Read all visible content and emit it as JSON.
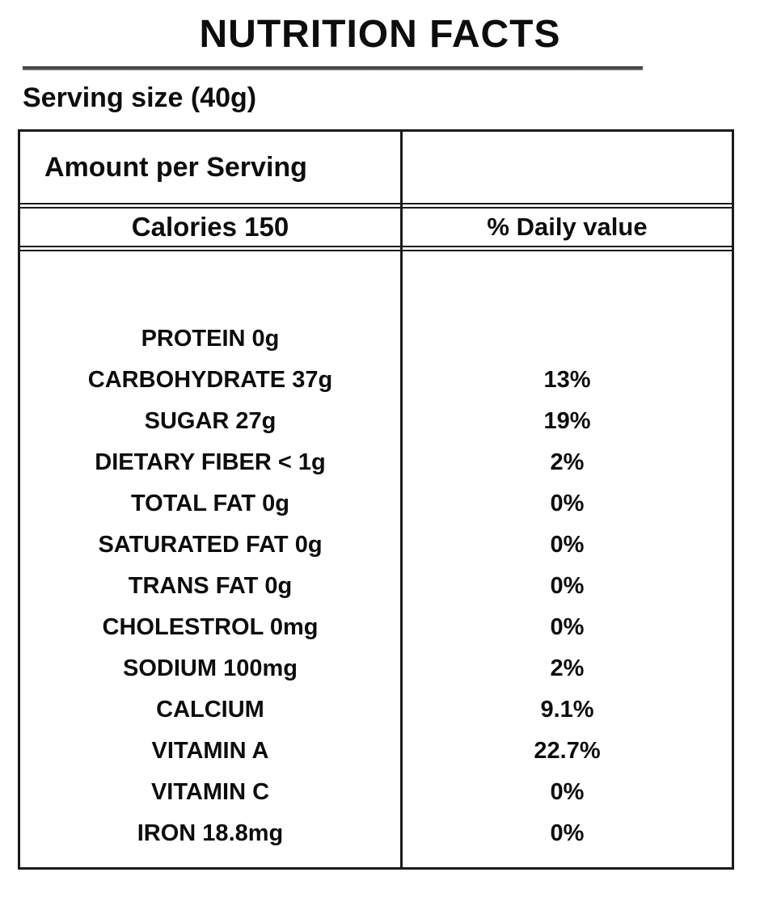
{
  "page": {
    "title": "NUTRITION FACTS",
    "serving_size": "Serving size (40g)"
  },
  "table": {
    "amount_header": "Amount per Serving",
    "calories": "Calories 150",
    "daily_value_header": "% Daily value",
    "rows": [
      {
        "label": "PROTEIN 0g",
        "value": ""
      },
      {
        "label": "CARBOHYDRATE 37g",
        "value": "13%"
      },
      {
        "label": "SUGAR 27g",
        "value": "19%"
      },
      {
        "label": "DIETARY FIBER < 1g",
        "value": "2%"
      },
      {
        "label": "TOTAL FAT 0g",
        "value": "0%"
      },
      {
        "label": "SATURATED FAT 0g",
        "value": "0%"
      },
      {
        "label": "TRANS FAT 0g",
        "value": "0%"
      },
      {
        "label": "CHOLESTROL 0mg",
        "value": "0%"
      },
      {
        "label": "SODIUM 100mg",
        "value": "2%"
      },
      {
        "label": "CALCIUM",
        "value": "9.1%"
      },
      {
        "label": "VITAMIN A",
        "value": "22.7%"
      },
      {
        "label": "VITAMIN C",
        "value": "0%"
      },
      {
        "label": "IRON 18.8mg",
        "value": "0%"
      }
    ]
  },
  "colors": {
    "text": "#0d0d0d",
    "table_border": "#1b1b1b",
    "title_rule": "#4f4f4f"
  }
}
